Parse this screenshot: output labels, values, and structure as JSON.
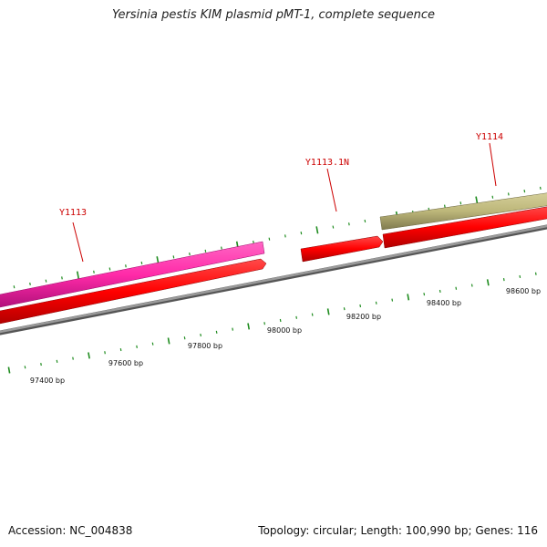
{
  "title": "Yersinia pestis KIM plasmid pMT-1, complete sequence",
  "footer": {
    "accession": "Accession: NC_004838",
    "summary": "Topology: circular; Length: 100,990 bp; Genes: 116"
  },
  "colors": {
    "backbone": "#808080",
    "tick": "#1f8c1f",
    "gene_label": "#cc0000",
    "cds_red": "#ff0000",
    "cds_pink": "#ff33aa",
    "cds_olive": "#bdb77a"
  },
  "gene_labels": [
    {
      "name": "Y1113"
    },
    {
      "name": "Y1113.1N"
    },
    {
      "name": "Y1114"
    }
  ],
  "tick_labels": [
    "97400 bp",
    "97600 bp",
    "97800 bp",
    "98000 bp",
    "98200 bp",
    "98400 bp",
    "98600 bp"
  ]
}
